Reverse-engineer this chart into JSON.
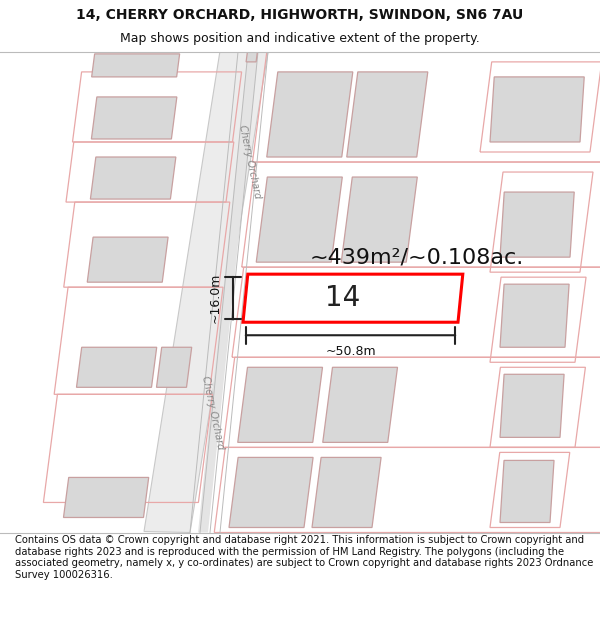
{
  "title_line1": "14, CHERRY ORCHARD, HIGHWORTH, SWINDON, SN6 7AU",
  "title_line2": "Map shows position and indicative extent of the property.",
  "footer_text": "Contains OS data © Crown copyright and database right 2021. This information is subject to Crown copyright and database rights 2023 and is reproduced with the permission of HM Land Registry. The polygons (including the associated geometry, namely x, y co-ordinates) are subject to Crown copyright and database rights 2023 Ordnance Survey 100026316.",
  "area_label": "~439m²/~0.108ac.",
  "width_label": "~50.8m",
  "height_label": "~16.0m",
  "property_number": "14",
  "bg_color": "#ffffff",
  "building_fill": "#d8d8d8",
  "plot_edge": "#e8a8a8",
  "building_edge": "#c8a0a0",
  "road_fill": "#e8e8e8",
  "road_edge": "#cccccc",
  "highlight_color": "#ff0000",
  "dim_color": "#222222",
  "street_label": "Cherry Orchard",
  "title_fontsize": 10,
  "subtitle_fontsize": 9,
  "footer_fontsize": 7.2,
  "area_fontsize": 16,
  "number_fontsize": 20,
  "dim_fontsize": 9
}
